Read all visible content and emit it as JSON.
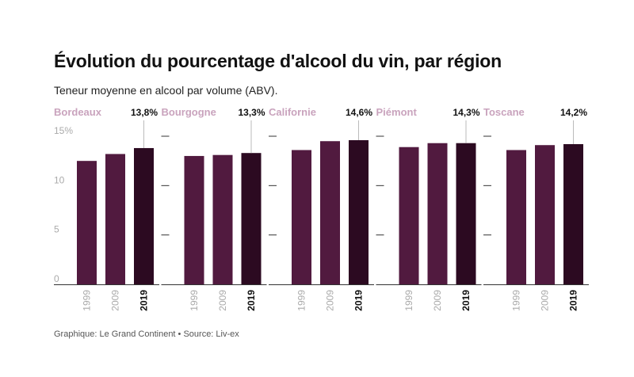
{
  "title": "Évolution du pourcentage d'alcool du vin, par région",
  "subtitle": "Teneur moyenne en alcool par volume (ABV).",
  "footer": "Graphique: Le Grand Continent • Source: Liv-ex",
  "colors": {
    "bar_old": "#511a3f",
    "bar_latest": "#2c0a21",
    "region_label": "#c9a3bd",
    "axis": "#333333",
    "tick_label": "#aaaaaa",
    "leader_line": "#bbbbbb"
  },
  "chart_data": {
    "type": "bar",
    "layout": "small-multiples",
    "categories": [
      "1999",
      "2009",
      "2019"
    ],
    "y_ticks": [
      "0",
      "5",
      "10",
      "15%"
    ],
    "ylim": [
      0,
      15
    ],
    "grid": false,
    "panels": [
      {
        "region": "Bordeaux",
        "values": [
          12.5,
          13.2,
          13.8
        ],
        "annotation": "13,8%"
      },
      {
        "region": "Bourgogne",
        "values": [
          13.0,
          13.1,
          13.3
        ],
        "annotation": "13,3%"
      },
      {
        "region": "Californie",
        "values": [
          13.6,
          14.5,
          14.6
        ],
        "annotation": "14,6%"
      },
      {
        "region": "Piémont",
        "values": [
          13.9,
          14.3,
          14.3
        ],
        "annotation": "14,3%"
      },
      {
        "region": "Toscane",
        "values": [
          13.6,
          14.1,
          14.2
        ],
        "annotation": "14,2%"
      }
    ]
  }
}
